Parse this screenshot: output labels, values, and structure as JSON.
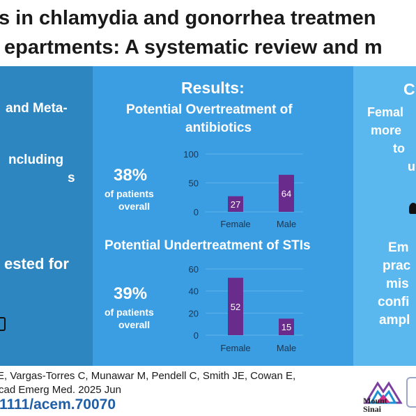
{
  "title": {
    "line1": "s in chlamydia and gonorrhea treatmen",
    "line2": "epartments: A systematic review and m"
  },
  "left_panel": {
    "line1": "and Meta-",
    "line2": "ncluding",
    "line3": "s",
    "line4": "ested for"
  },
  "results": {
    "heading": "Results:",
    "over": {
      "title_line1": "Potential Overtreatment of",
      "title_line2": "antibiotics",
      "pct": "38%",
      "sub1": "of patients",
      "sub2": "overall"
    },
    "under": {
      "title": "Potential Undertreatment of STIs",
      "pct": "39%",
      "sub1": "of patients",
      "sub2": "overall"
    }
  },
  "right_panel": {
    "heading": "C",
    "t1": "Femal",
    "t2": "more",
    "t3": "to",
    "t4": "u",
    "t5": "Em",
    "t6": "prac",
    "t7": "mis",
    "t8": "confi",
    "t9": "ampl"
  },
  "chart_data": [
    {
      "type": "bar",
      "categories": [
        "Female",
        "Male"
      ],
      "values": [
        27,
        64
      ],
      "ylim": [
        0,
        100
      ],
      "yticks": [
        0,
        50,
        100
      ],
      "bar_color": "#6a2c8c"
    },
    {
      "type": "bar",
      "categories": [
        "Female",
        "Male"
      ],
      "values": [
        52,
        15
      ],
      "ylim": [
        0,
        60
      ],
      "yticks": [
        0,
        20,
        40,
        60
      ],
      "bar_color": "#6a2c8c"
    }
  ],
  "footer": {
    "citation1": "E, Vargas-Torres C, Munawar M, Pendell C, Smith JE, Cowan E,",
    "citation2": "cad Emerg Med. 2025 Jun",
    "doi": "1111/acem.70070",
    "logo_line1": "Mount",
    "logo_line2": "Sinai"
  }
}
